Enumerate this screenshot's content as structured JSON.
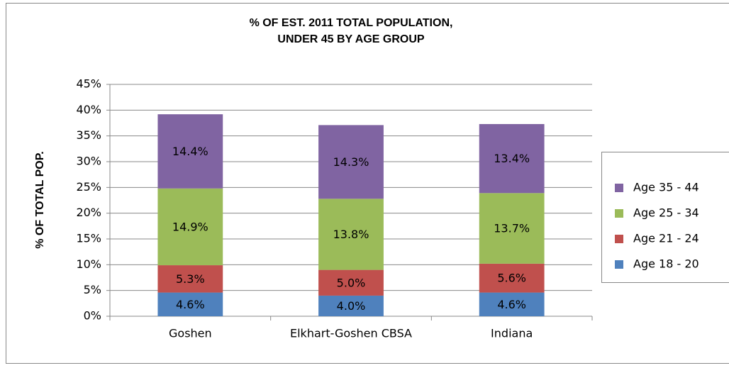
{
  "chart_data": {
    "type": "stacked_bar",
    "title": [
      "% OF EST. 2011 TOTAL POPULATION,",
      "UNDER 45 BY AGE GROUP"
    ],
    "y_label": "% OF TOTAL POP.",
    "categories": [
      "Goshen",
      "Elkhart-Goshen CBSA",
      "Indiana"
    ],
    "series": [
      {
        "name": "Age 18 - 20",
        "color": "#4f81bd",
        "values": [
          4.6,
          4.0,
          4.6
        ],
        "value_labels": [
          "4.6%",
          "4.0%",
          "4.6%"
        ]
      },
      {
        "name": "Age 21 - 24",
        "color": "#c0504d",
        "values": [
          5.3,
          5.0,
          5.6
        ],
        "value_labels": [
          "5.3%",
          "5.0%",
          "5.6%"
        ]
      },
      {
        "name": "Age 25 - 34",
        "color": "#9bbb59",
        "values": [
          14.9,
          13.8,
          13.7
        ],
        "value_labels": [
          "14.9%",
          "13.8%",
          "13.7%"
        ]
      },
      {
        "name": "Age 35 - 44",
        "color": "#8064a2",
        "values": [
          14.4,
          14.3,
          13.4
        ],
        "value_labels": [
          "14.4%",
          "14.3%",
          "13.4%"
        ]
      }
    ],
    "ylim": [
      0,
      45
    ],
    "yticks": [
      {
        "value": 0,
        "label": "0%"
      },
      {
        "value": 5,
        "label": "5%"
      },
      {
        "value": 10,
        "label": "10%"
      },
      {
        "value": 15,
        "label": "15%"
      },
      {
        "value": 20,
        "label": "20%"
      },
      {
        "value": 25,
        "label": "25%"
      },
      {
        "value": 30,
        "label": "30%"
      },
      {
        "value": 35,
        "label": "35%"
      },
      {
        "value": 40,
        "label": "40%"
      },
      {
        "value": 45,
        "label": "45%"
      }
    ],
    "grid": true,
    "legend": "right"
  }
}
